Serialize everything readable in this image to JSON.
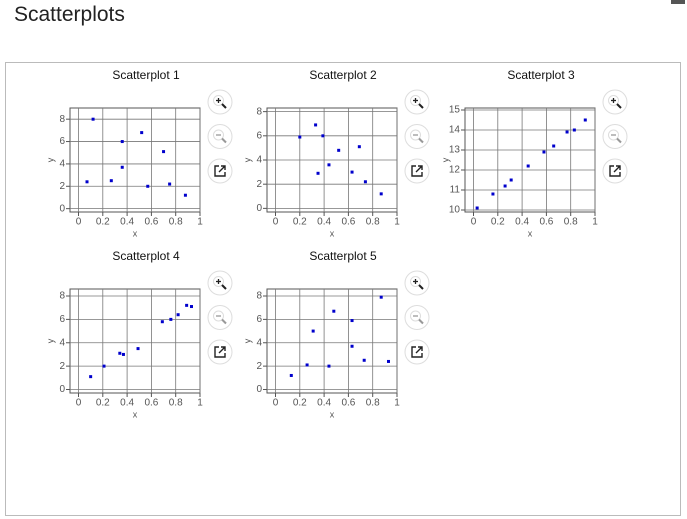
{
  "title": "Scatterplots",
  "chart_data": [
    {
      "type": "scatter",
      "title": "Scatterplot 1",
      "x_label": "x",
      "y_label": "y",
      "color": "#0000cc",
      "grid": true,
      "x": [
        0.07,
        0.12,
        0.27,
        0.36,
        0.36,
        0.52,
        0.57,
        0.7,
        0.75,
        0.88
      ],
      "values": [
        2.4,
        8,
        2.5,
        6,
        3.7,
        6.8,
        2,
        5.1,
        2.2,
        1.2
      ],
      "xlim": [
        -0.07,
        1
      ],
      "ylim": [
        -0.3,
        9
      ],
      "xticks": [
        0,
        0.2,
        0.4,
        0.6,
        0.8,
        1
      ],
      "yticks": [
        0,
        2,
        4,
        6,
        8
      ]
    },
    {
      "type": "scatter",
      "title": "Scatterplot 2",
      "x_label": "x",
      "y_label": "y",
      "color": "#0000cc",
      "grid": true,
      "x": [
        0.2,
        0.33,
        0.35,
        0.39,
        0.44,
        0.52,
        0.63,
        0.69,
        0.74,
        0.87
      ],
      "values": [
        5.9,
        6.9,
        2.9,
        6,
        3.6,
        4.8,
        3,
        5.1,
        2.2,
        1.2
      ],
      "xlim": [
        -0.07,
        1
      ],
      "ylim": [
        -0.3,
        8.3
      ],
      "xticks": [
        0,
        0.2,
        0.4,
        0.6,
        0.8,
        1
      ],
      "yticks": [
        0,
        2,
        4,
        6,
        8
      ]
    },
    {
      "type": "scatter",
      "title": "Scatterplot 3",
      "x_label": "x",
      "y_label": "y",
      "color": "#0000cc",
      "grid": true,
      "x": [
        0.03,
        0.16,
        0.26,
        0.31,
        0.45,
        0.58,
        0.66,
        0.77,
        0.83,
        0.92
      ],
      "values": [
        10.1,
        10.8,
        11.2,
        11.5,
        12.2,
        12.9,
        13.2,
        13.9,
        14,
        14.5
      ],
      "xlim": [
        -0.07,
        1
      ],
      "ylim": [
        9.9,
        15.1
      ],
      "xticks": [
        0,
        0.2,
        0.4,
        0.6,
        0.8,
        1
      ],
      "yticks": [
        10,
        11,
        12,
        13,
        14,
        15
      ]
    },
    {
      "type": "scatter",
      "title": "Scatterplot 4",
      "x_label": "x",
      "y_label": "y",
      "color": "#0000cc",
      "grid": true,
      "x": [
        0.1,
        0.21,
        0.34,
        0.37,
        0.49,
        0.69,
        0.76,
        0.82,
        0.89,
        0.93
      ],
      "values": [
        1.1,
        2,
        3.1,
        3,
        3.5,
        5.8,
        6,
        6.4,
        7.2,
        7.1
      ],
      "xlim": [
        -0.07,
        1
      ],
      "ylim": [
        -0.3,
        8.6
      ],
      "xticks": [
        0,
        0.2,
        0.4,
        0.6,
        0.8,
        1
      ],
      "yticks": [
        0,
        2,
        4,
        6,
        8
      ]
    },
    {
      "type": "scatter",
      "title": "Scatterplot 5",
      "x_label": "x",
      "y_label": "y",
      "color": "#0000cc",
      "grid": true,
      "x": [
        0.13,
        0.26,
        0.31,
        0.44,
        0.48,
        0.63,
        0.63,
        0.73,
        0.87,
        0.93
      ],
      "values": [
        1.2,
        2.1,
        5,
        2,
        6.7,
        5.9,
        3.7,
        2.5,
        7.9,
        2.4
      ],
      "xlim": [
        -0.07,
        1
      ],
      "ylim": [
        -0.3,
        8.6
      ],
      "xticks": [
        0,
        0.2,
        0.4,
        0.6,
        0.8,
        1
      ],
      "yticks": [
        0,
        2,
        4,
        6,
        8
      ]
    }
  ]
}
